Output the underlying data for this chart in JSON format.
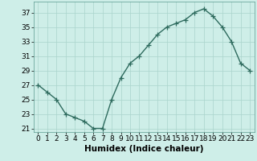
{
  "x": [
    0,
    1,
    2,
    3,
    4,
    5,
    6,
    7,
    8,
    9,
    10,
    11,
    12,
    13,
    14,
    15,
    16,
    17,
    18,
    19,
    20,
    21,
    22,
    23
  ],
  "y": [
    27,
    26,
    25,
    23,
    22.5,
    22,
    21,
    21,
    25,
    28,
    30,
    31,
    32.5,
    34,
    35,
    35.5,
    36,
    37,
    37.5,
    36.5,
    35,
    33,
    30,
    29
  ],
  "line_color": "#2E6B5E",
  "marker": "+",
  "marker_size": 4,
  "marker_linewidth": 0.9,
  "line_width": 1.0,
  "background_color": "#ceeee8",
  "grid_color": "#aad4cc",
  "xlabel": "Humidex (Indice chaleur)",
  "xlabel_fontsize": 7.5,
  "tick_fontsize": 6.5,
  "xlim": [
    -0.5,
    23.5
  ],
  "ylim": [
    20.5,
    38.5
  ],
  "yticks": [
    21,
    23,
    25,
    27,
    29,
    31,
    33,
    35,
    37
  ],
  "xticks": [
    0,
    1,
    2,
    3,
    4,
    5,
    6,
    7,
    8,
    9,
    10,
    11,
    12,
    13,
    14,
    15,
    16,
    17,
    18,
    19,
    20,
    21,
    22,
    23
  ]
}
